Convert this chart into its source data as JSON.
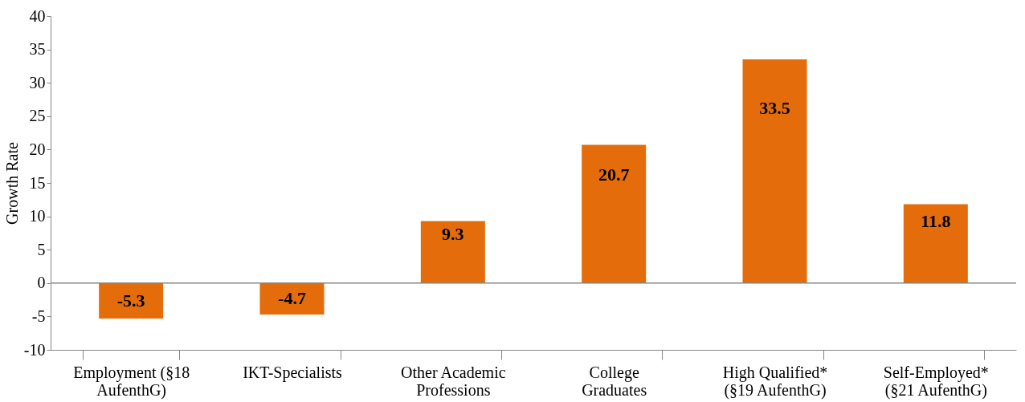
{
  "chart_data": {
    "type": "bar",
    "ylabel": "Growth Rate",
    "categories": [
      "Employment (§18 AufenthG)",
      "IKT-Specialists",
      "Other Academic Professions",
      "College Graduates",
      "High Qualified* (§19 AufenthG)",
      "Self-Employed* (§21 AufenthG)"
    ],
    "values": [
      -5.3,
      -4.7,
      9.3,
      20.7,
      33.5,
      11.8
    ],
    "color": "#e46c0a",
    "ylim": [
      -10,
      40
    ],
    "yticks": [
      -10,
      -5,
      0,
      5,
      10,
      15,
      20,
      25,
      30,
      35,
      40
    ],
    "ref_lines": [
      {
        "axis": "y",
        "value": 0,
        "color": "#868686"
      }
    ],
    "data_labels": true,
    "grid": false
  }
}
